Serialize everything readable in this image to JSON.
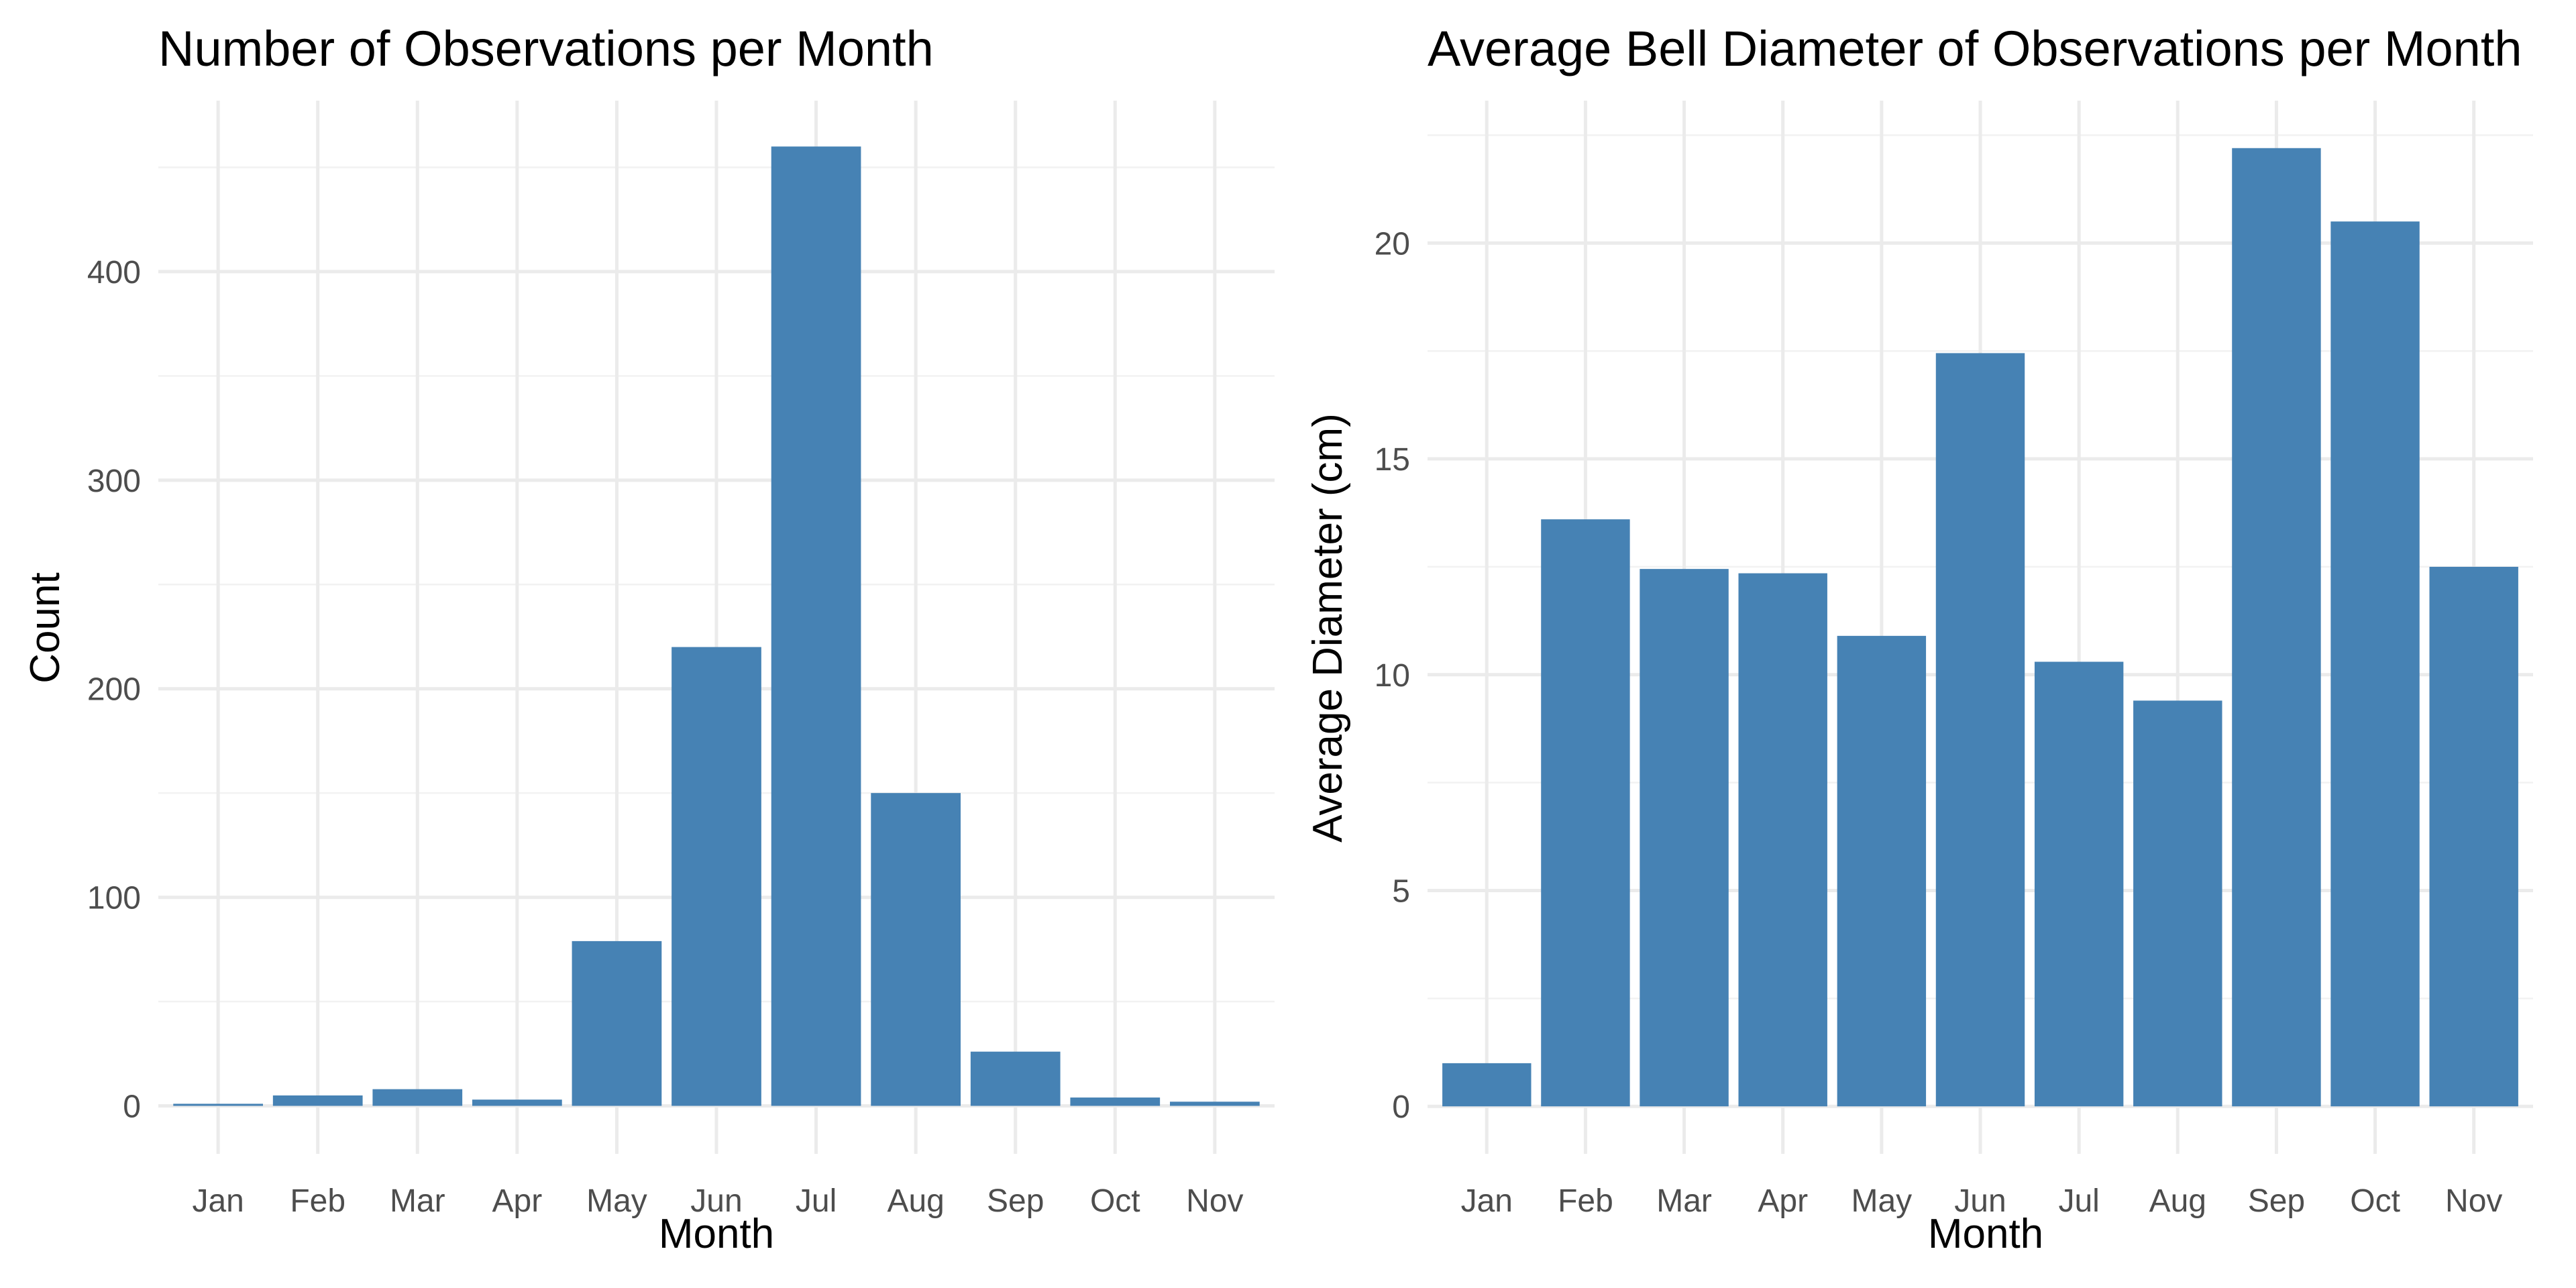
{
  "bar_color": "#4682b4",
  "chart_data": [
    {
      "type": "bar",
      "title": "Number of Observations per Month",
      "xlabel": "Month",
      "ylabel": "Count",
      "categories": [
        "Jan",
        "Feb",
        "Mar",
        "Apr",
        "May",
        "Jun",
        "Jul",
        "Aug",
        "Sep",
        "Oct",
        "Nov"
      ],
      "values": [
        1,
        5,
        8,
        3,
        79,
        220,
        460,
        150,
        26,
        4,
        2
      ],
      "ylim": [
        -23,
        482
      ],
      "yticks": [
        0,
        100,
        200,
        300,
        400
      ],
      "grid": true
    },
    {
      "type": "bar",
      "title": "Average Bell Diameter of Observations per Month",
      "xlabel": "Month",
      "ylabel": "Average Diameter (cm)",
      "categories": [
        "Jan",
        "Feb",
        "Mar",
        "Apr",
        "May",
        "Jun",
        "Jul",
        "Aug",
        "Sep",
        "Oct",
        "Nov"
      ],
      "values": [
        1.0,
        13.6,
        12.45,
        12.35,
        10.9,
        17.45,
        10.3,
        9.4,
        22.2,
        20.5,
        12.5
      ],
      "ylim": [
        -1.1,
        23.3
      ],
      "yticks": [
        0,
        5,
        10,
        15,
        20
      ],
      "grid": true
    }
  ]
}
